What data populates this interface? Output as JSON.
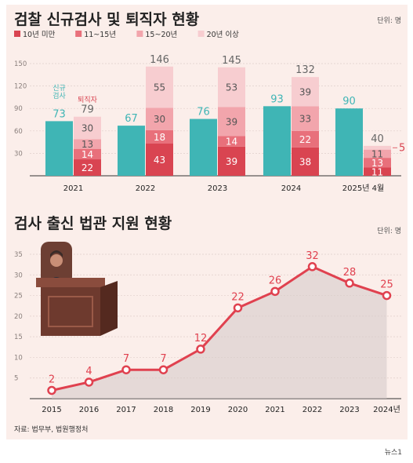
{
  "chart_data": [
    {
      "type": "bar",
      "title": "검찰 신규검사 및 퇴직자 현황",
      "unit": "단위: 명",
      "categories": [
        "2021",
        "2022",
        "2023",
        "2024",
        "2025년 4월"
      ],
      "ylim": [
        0,
        150
      ],
      "yticks": [
        30,
        60,
        90,
        120,
        150
      ],
      "new_prosecutors": {
        "annotation": "신규\n검사",
        "values": [
          73,
          67,
          76,
          93,
          90
        ],
        "color": "#3fb5b5"
      },
      "retirees": {
        "annotation": "퇴직자",
        "totals": [
          79,
          146,
          145,
          132,
          40
        ],
        "series": [
          {
            "name": "10년 미만",
            "values": [
              22,
              43,
              39,
              38,
              11
            ],
            "color": "#d94451"
          },
          {
            "name": "11~15년",
            "values": [
              14,
              18,
              14,
              22,
              13
            ],
            "color": "#e8707b"
          },
          {
            "name": "15~20년",
            "values": [
              13,
              30,
              39,
              33,
              11
            ],
            "color": "#f2a5ac"
          },
          {
            "name": "20년 이상",
            "values": [
              30,
              55,
              53,
              39,
              5
            ],
            "color": "#f7cdd0"
          }
        ]
      }
    },
    {
      "type": "line",
      "title": "검사 출신 법관 지원 현황",
      "unit": "단위: 명",
      "x": [
        "2015",
        "2016",
        "2017",
        "2018",
        "2019",
        "2020",
        "2021",
        "2022",
        "2023",
        "2024년"
      ],
      "values": [
        2,
        4,
        7,
        7,
        12,
        22,
        26,
        32,
        28,
        25
      ],
      "ylim": [
        0,
        35
      ],
      "yticks": [
        5,
        10,
        15,
        20,
        25,
        30,
        35
      ],
      "color": "#e0414f"
    }
  ],
  "source": "자료: 법무부, 법원행정처",
  "credit": "뉴스1"
}
